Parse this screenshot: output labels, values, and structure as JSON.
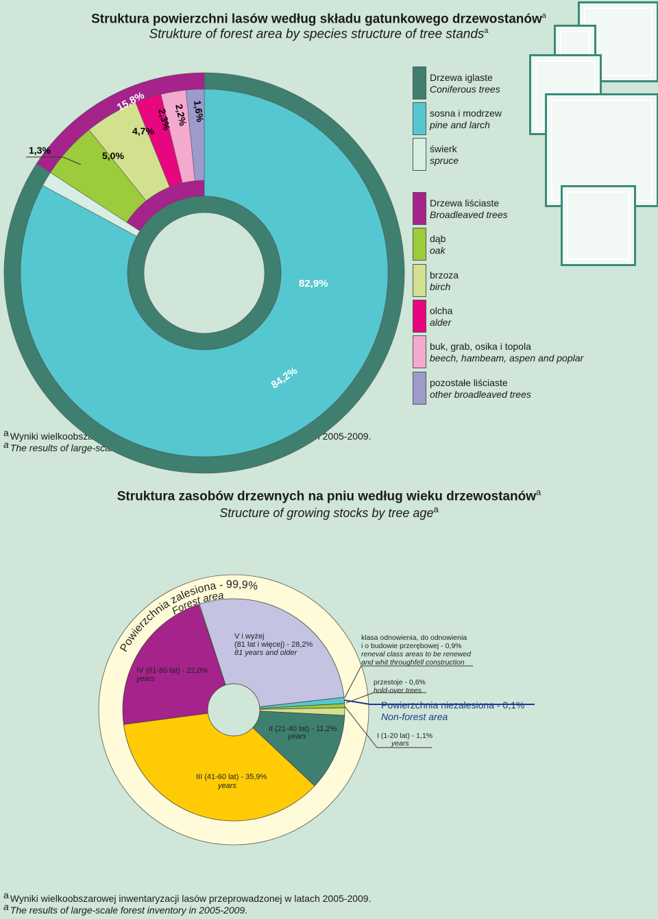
{
  "top": {
    "title_pl": "Struktura powierzchni lasów według składu gatunkowego drzewostanów",
    "title_en": "Strukture of  forest area by species structure of tree stands",
    "sup": "a",
    "legend": [
      {
        "pl": "Drzewa iglaste",
        "en": "Coniferous trees",
        "color": "#3e7f70"
      },
      {
        "pl": "sosna i modrzew",
        "en": "pine and larch",
        "color": "#55c7d0"
      },
      {
        "pl": "świerk",
        "en": "spruce",
        "color": "#d6eee3"
      },
      {
        "pl": "Drzewa liściaste",
        "en": "Broadleaved trees",
        "color": "#a5238a"
      },
      {
        "pl": "dąb",
        "en": "oak",
        "color": "#9ccb3b"
      },
      {
        "pl": "brzoza",
        "en": "birch",
        "color": "#d3e08e"
      },
      {
        "pl": "olcha",
        "en": "alder",
        "color": "#e8067e"
      },
      {
        "pl": "buk, grab, osika i topola",
        "en": "beech, hambeam, aspen and poplar",
        "color": "#f4a9cf"
      },
      {
        "pl": "pozostałe liściaste",
        "en": "other broadleaved trees",
        "color": "#9d9bcc"
      }
    ],
    "footnote_pl": "Wyniki wielkoobszarowej inwentaryzacji lasów przeprowadzonej w latach 2005-2009.",
    "footnote_en": "The results of large-scale forest inventory in 2005-2009."
  },
  "bottom": {
    "title_pl": "Struktura zasobów drzewnych na pniu według wieku drzewostanów",
    "title_en": "Structure of growing stocks by tree age",
    "sup": "a",
    "ring_label_pl": "Powierzchnia zalesiona - 99,9%",
    "ring_label_en": "Forest area",
    "nonforest_pl": "Powierzchnia niezalesiona - 0,1%",
    "nonforest_en": "Non-forest area",
    "footnote_pl": "Wyniki wielkoobszarowej inwentaryzacji lasów przeprowadzonej w latach 2005-2009.",
    "footnote_en": "The results of large-scale forest inventory in 2005-2009."
  },
  "chart_data": [
    {
      "type": "pie",
      "subtype": "nested-donut",
      "title": "Struktura powierzchni lasów według składu gatunkowego drzewostanów",
      "inner_ring": [
        {
          "name": "Drzewa iglaste",
          "value": 84.2,
          "label": "84,2%",
          "color": "#3e7f70"
        },
        {
          "name": "Drzewa liściaste",
          "value": 15.8,
          "label": "15,8%",
          "color": "#a5238a"
        }
      ],
      "outer_ring": [
        {
          "name": "sosna i modrzew",
          "value": 82.9,
          "label": "82,9%",
          "color": "#55c7d0"
        },
        {
          "name": "świerk",
          "value": 1.3,
          "label": "1,3%",
          "color": "#d6eee3"
        },
        {
          "name": "dąb",
          "value": 5.0,
          "label": "5,0%",
          "color": "#9ccb3b"
        },
        {
          "name": "brzoza",
          "value": 4.7,
          "label": "4,7%",
          "color": "#d3e08e"
        },
        {
          "name": "olcha",
          "value": 2.3,
          "label": "2,3%",
          "color": "#e8067e"
        },
        {
          "name": "buk, grab, osika i topola",
          "value": 2.2,
          "label": "2,2%",
          "color": "#f4a9cf"
        },
        {
          "name": "pozostałe liściaste",
          "value": 1.6,
          "label": "1,6%",
          "color": "#9d9bcc"
        }
      ]
    },
    {
      "type": "pie",
      "subtype": "donut",
      "title": "Struktura zasobów drzewnych na pniu według wieku drzewostanów",
      "slices": [
        {
          "name": "V i wyżej",
          "value": 28.2,
          "label": [
            "V i wyżej",
            "(81 lat i więcej) - 28,2%",
            "81 years and older"
          ],
          "color": "#c4c3e2"
        },
        {
          "name": "klasa odnowienia",
          "value": 0.9,
          "label": [
            "klasa odnowienia, do odnowienia",
            "i o budowie przerębowej - 0,9%",
            "reneval class areas to be renewed",
            "and whit throughfell construction"
          ],
          "color": "#55c7d0"
        },
        {
          "name": "przestoje",
          "value": 0.6,
          "label": [
            "przestoje - 0,6%",
            "hold-over trees"
          ],
          "color": "#9ccb3b"
        },
        {
          "name": "I (1-20 lat)",
          "value": 1.1,
          "label": [
            "I (1-20 lat) - 1,1%",
            "years"
          ],
          "color": "#d3e08e"
        },
        {
          "name": "II (21-40 lat)",
          "value": 11.2,
          "label": [
            "II (21-40 lat) - 11,2%",
            "years"
          ],
          "color": "#3e7f70"
        },
        {
          "name": "III (41-60 lat)",
          "value": 35.9,
          "label": [
            "III (41-60 lat) - 35,9%",
            "years"
          ],
          "color": "#ffcb05"
        },
        {
          "name": "IV (61-80 lat)",
          "value": 22.0,
          "label": [
            "IV (61-80 lat) - 22,0%",
            "years"
          ],
          "color": "#a5238a"
        }
      ]
    }
  ]
}
